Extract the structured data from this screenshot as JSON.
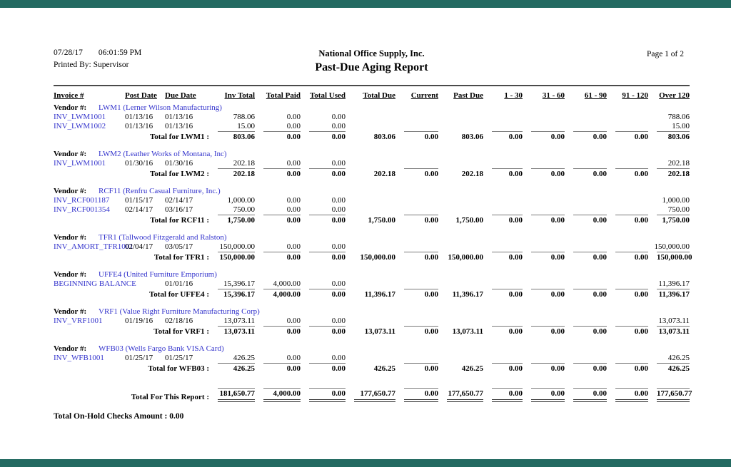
{
  "chrome": {
    "bar_color": "#236a61"
  },
  "header": {
    "date": "07/28/17",
    "time": "06:01:59 PM",
    "printed_by": "Printed By: Supervisor",
    "company": "National Office Supply, Inc.",
    "title": "Past-Due Aging Report",
    "page": "Page 1 of 2"
  },
  "table": {
    "columns": [
      "Invoice #",
      "Post Date",
      "Due Date",
      "Inv Total",
      "Total Paid",
      "Total Used",
      "Total Due",
      "Current",
      "Past Due",
      "1 - 30",
      "31 - 60",
      "61 - 90",
      "91 - 120",
      "Over 120"
    ],
    "vendor_label": "Vendor #:",
    "groups": [
      {
        "vendor": "LWM1 (Lerner Wilson Manufacturing)",
        "rows": [
          [
            "INV_LWM1001",
            "01/13/16",
            "01/13/16",
            "788.06",
            "0.00",
            "0.00",
            "",
            "",
            "",
            "",
            "",
            "",
            "",
            "788.06"
          ],
          [
            "INV_LWM1002",
            "01/13/16",
            "01/13/16",
            "15.00",
            "0.00",
            "0.00",
            "",
            "",
            "",
            "",
            "",
            "",
            "",
            "15.00"
          ]
        ],
        "total_label": "Total for LWM1 :",
        "totals": [
          "803.06",
          "0.00",
          "0.00",
          "803.06",
          "0.00",
          "803.06",
          "0.00",
          "0.00",
          "0.00",
          "0.00",
          "803.06"
        ]
      },
      {
        "vendor": "LWM2 (Leather Works of Montana, Inc)",
        "rows": [
          [
            "INV_LWM1001",
            "01/30/16",
            "01/30/16",
            "202.18",
            "0.00",
            "0.00",
            "",
            "",
            "",
            "",
            "",
            "",
            "",
            "202.18"
          ]
        ],
        "total_label": "Total for LWM2 :",
        "totals": [
          "202.18",
          "0.00",
          "0.00",
          "202.18",
          "0.00",
          "202.18",
          "0.00",
          "0.00",
          "0.00",
          "0.00",
          "202.18"
        ]
      },
      {
        "vendor": "RCF11 (Renfru Casual Furniture, Inc.)",
        "rows": [
          [
            "INV_RCF001187",
            "01/15/17",
            "02/14/17",
            "1,000.00",
            "0.00",
            "0.00",
            "",
            "",
            "",
            "",
            "",
            "",
            "",
            "1,000.00"
          ],
          [
            "INV_RCF001354",
            "02/14/17",
            "03/16/17",
            "750.00",
            "0.00",
            "0.00",
            "",
            "",
            "",
            "",
            "",
            "",
            "",
            "750.00"
          ]
        ],
        "total_label": "Total for RCF11 :",
        "totals": [
          "1,750.00",
          "0.00",
          "0.00",
          "1,750.00",
          "0.00",
          "1,750.00",
          "0.00",
          "0.00",
          "0.00",
          "0.00",
          "1,750.00"
        ]
      },
      {
        "vendor": "TFR1 (Tallwood Fitzgerald and Ralston)",
        "rows": [
          [
            "INV_AMORT_TFR1001",
            "02/04/17",
            "03/05/17",
            "150,000.00",
            "0.00",
            "0.00",
            "",
            "",
            "",
            "",
            "",
            "",
            "",
            "150,000.00"
          ]
        ],
        "total_label": "Total for TFR1 :",
        "totals": [
          "150,000.00",
          "0.00",
          "0.00",
          "150,000.00",
          "0.00",
          "150,000.00",
          "0.00",
          "0.00",
          "0.00",
          "0.00",
          "150,000.00"
        ]
      },
      {
        "vendor": "UFFE4 (United Furniture Emporium)",
        "rows": [
          [
            "BEGINNING BALANCE",
            "",
            "01/01/16",
            "15,396.17",
            "4,000.00",
            "0.00",
            "",
            "",
            "",
            "",
            "",
            "",
            "",
            "11,396.17"
          ]
        ],
        "total_label": "Total for UFFE4 :",
        "totals": [
          "15,396.17",
          "4,000.00",
          "0.00",
          "11,396.17",
          "0.00",
          "11,396.17",
          "0.00",
          "0.00",
          "0.00",
          "0.00",
          "11,396.17"
        ]
      },
      {
        "vendor": "VRF1 (Value Right Furniture Manufacturing Corp)",
        "rows": [
          [
            "INV_VRF1001",
            "01/19/16",
            "02/18/16",
            "13,073.11",
            "0.00",
            "0.00",
            "",
            "",
            "",
            "",
            "",
            "",
            "",
            "13,073.11"
          ]
        ],
        "total_label": "Total for VRF1 :",
        "totals": [
          "13,073.11",
          "0.00",
          "0.00",
          "13,073.11",
          "0.00",
          "13,073.11",
          "0.00",
          "0.00",
          "0.00",
          "0.00",
          "13,073.11"
        ]
      },
      {
        "vendor": "WFB03 (Wells Fargo Bank VISA Card)",
        "rows": [
          [
            "INV_WFB1001",
            "01/25/17",
            "01/25/17",
            "426.25",
            "0.00",
            "0.00",
            "",
            "",
            "",
            "",
            "",
            "",
            "",
            "426.25"
          ]
        ],
        "total_label": "Total for WFB03 :",
        "totals": [
          "426.25",
          "0.00",
          "0.00",
          "426.25",
          "0.00",
          "426.25",
          "0.00",
          "0.00",
          "0.00",
          "0.00",
          "426.25"
        ]
      }
    ],
    "report_total_label": "Total For This Report :",
    "report_totals": [
      "181,650.77",
      "4,000.00",
      "0.00",
      "177,650.77",
      "0.00",
      "177,650.77",
      "0.00",
      "0.00",
      "0.00",
      "0.00",
      "177,650.77"
    ],
    "footer": "Total On-Hold Checks Amount : 0.00"
  },
  "colors": {
    "link": "#3333cc"
  }
}
